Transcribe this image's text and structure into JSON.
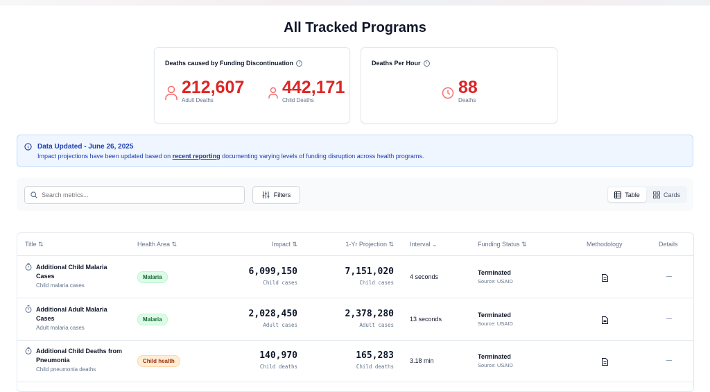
{
  "page_title": "All Tracked Programs",
  "cards": {
    "deaths": {
      "title": "Deaths caused by Funding Discontinuation",
      "adult_value": "212,607",
      "adult_label": "Adult Deaths",
      "child_value": "442,171",
      "child_label": "Child Deaths"
    },
    "per_hour": {
      "title": "Deaths Per Hour",
      "value": "88",
      "label": "Deaths"
    }
  },
  "banner": {
    "title": "Data Updated - June 26, 2025",
    "text_before": "Impact projections have been updated based on ",
    "link": "recent reporting",
    "text_after": " documenting varying levels of funding disruption across health programs."
  },
  "toolbar": {
    "search_placeholder": "Search metrics...",
    "filters_label": "Filters",
    "view_table": "Table",
    "view_cards": "Cards"
  },
  "table": {
    "headers": {
      "title": "Title ⇅",
      "health_area": "Health Area ⇅",
      "impact": "Impact ⇅",
      "projection": "1-Yr Projection ⇅",
      "interval": "Interval ⌄",
      "funding": "Funding Status ⇅",
      "methodology": "Methodology",
      "details": "Details"
    },
    "rows": [
      {
        "title": "Additional Child Malaria Cases",
        "subtitle": "Child malaria cases",
        "area": "Malaria",
        "impact": "6,099,150",
        "impact_unit": "Child cases",
        "projection": "7,151,020",
        "projection_unit": "Child cases",
        "interval": "4 seconds",
        "status": "Terminated",
        "source": "Source: USAID"
      },
      {
        "title": "Additional Adult Malaria Cases",
        "subtitle": "Adult malaria cases",
        "area": "Malaria",
        "impact": "2,028,450",
        "impact_unit": "Adult cases",
        "projection": "2,378,280",
        "projection_unit": "Adult cases",
        "interval": "13 seconds",
        "status": "Terminated",
        "source": "Source: USAID"
      },
      {
        "title": "Additional Child Deaths from Pneumonia",
        "subtitle": "Child pneumonia deaths",
        "area": "Child health",
        "impact": "140,970",
        "impact_unit": "Child deaths",
        "projection": "165,283",
        "projection_unit": "Child deaths",
        "interval": "3.18 min",
        "status": "Terminated",
        "source": "Source: USAID"
      }
    ]
  },
  "colors": {
    "accent_red": "#dc2626",
    "banner_blue": "#1e40af"
  }
}
